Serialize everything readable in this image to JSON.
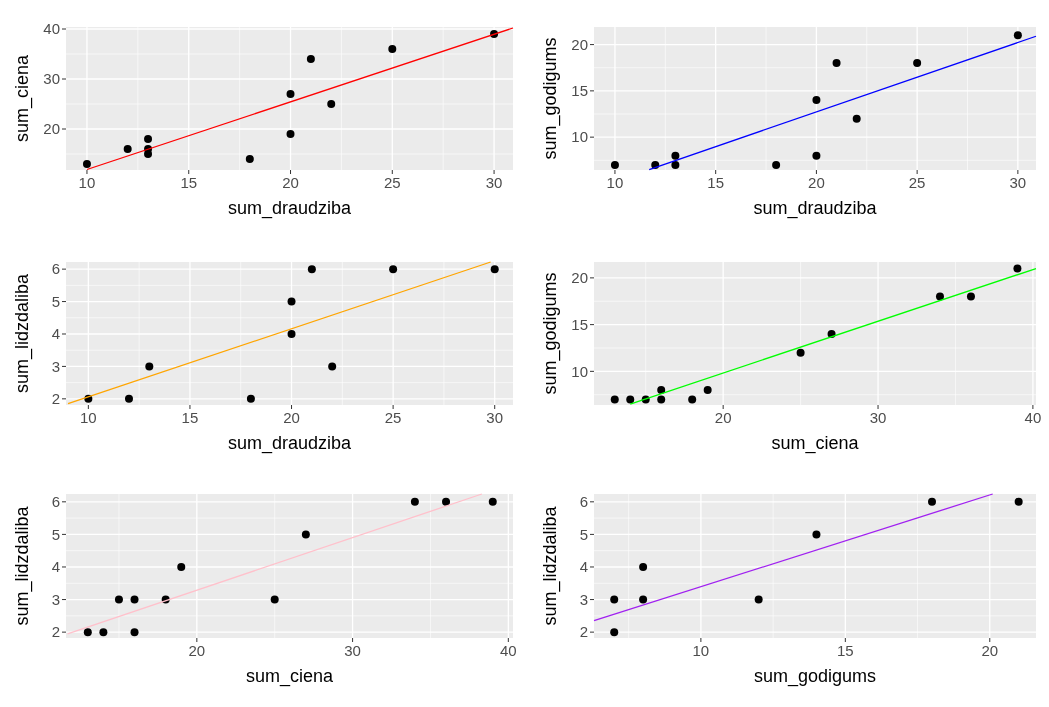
{
  "chart_data": [
    {
      "type": "scatter",
      "xlabel": "sum_draudziba",
      "ylabel": "sum_ciena",
      "xlim": [
        8.97,
        30.93
      ],
      "ylim": [
        11.8,
        40.4
      ],
      "xticks": [
        10,
        15,
        20,
        25,
        30
      ],
      "yticks": [
        20,
        30,
        40
      ],
      "grid": true,
      "series": [
        {
          "type": "scatter",
          "color": "#000000",
          "marker": "circle",
          "x": [
            10,
            12,
            13,
            13,
            13,
            18,
            20,
            20,
            21,
            22,
            25,
            30
          ],
          "values": [
            13,
            16,
            18,
            16,
            15,
            14,
            27,
            19,
            34,
            25,
            36,
            39
          ]
        },
        {
          "type": "line",
          "color": "#ff0000",
          "x": [
            10,
            30.93
          ],
          "values": [
            11.9,
            40.2
          ]
        }
      ]
    },
    {
      "type": "scatter",
      "xlabel": "sum_draudziba",
      "ylabel": "sum_godigums",
      "xlim": [
        8.96,
        30.9
      ],
      "ylim": [
        6.45,
        21.9
      ],
      "xticks": [
        10,
        15,
        20,
        25,
        30
      ],
      "yticks": [
        10,
        15,
        20
      ],
      "grid": true,
      "series": [
        {
          "type": "scatter",
          "color": "#000000",
          "marker": "circle",
          "x": [
            10,
            12,
            13,
            13,
            18,
            20,
            20,
            21,
            22,
            25,
            30
          ],
          "values": [
            7,
            7,
            8,
            7,
            7,
            14,
            8,
            18,
            12,
            18,
            21
          ]
        },
        {
          "type": "line",
          "color": "#0000ff",
          "x": [
            11.7,
            30.9
          ],
          "values": [
            6.5,
            20.9
          ]
        }
      ]
    },
    {
      "type": "scatter",
      "xlabel": "sum_draudziba",
      "ylabel": "sum_lidzdaliba",
      "xlim": [
        8.9,
        30.9
      ],
      "ylim": [
        1.81,
        6.22
      ],
      "xticks": [
        10,
        15,
        20,
        25,
        30
      ],
      "yticks": [
        2,
        3,
        4,
        5,
        6
      ],
      "grid": true,
      "series": [
        {
          "type": "scatter",
          "color": "#000000",
          "marker": "circle",
          "x": [
            10,
            12,
            13,
            18,
            20,
            20,
            21,
            22,
            25,
            30
          ],
          "values": [
            2,
            2,
            3,
            2,
            5,
            4,
            6,
            3,
            6,
            6
          ]
        },
        {
          "type": "line",
          "color": "#ffa500",
          "x": [
            9,
            29.8
          ],
          "values": [
            1.85,
            6.22
          ]
        }
      ]
    },
    {
      "type": "scatter",
      "xlabel": "sum_ciena",
      "ylabel": "sum_godigums",
      "xlim": [
        11.66,
        40.2
      ],
      "ylim": [
        6.4,
        21.7
      ],
      "xticks": [
        20,
        30,
        40
      ],
      "yticks": [
        10,
        15,
        20
      ],
      "grid": true,
      "series": [
        {
          "type": "scatter",
          "color": "#000000",
          "marker": "circle",
          "x": [
            13,
            14,
            15,
            16,
            16,
            18,
            19,
            25,
            27,
            34,
            36,
            39
          ],
          "values": [
            7,
            7,
            7,
            8,
            7,
            7,
            8,
            12,
            14,
            18,
            18,
            21
          ]
        },
        {
          "type": "line",
          "color": "#00ff00",
          "x": [
            14,
            40.2
          ],
          "values": [
            6.5,
            21
          ]
        }
      ]
    },
    {
      "type": "scatter",
      "xlabel": "sum_ciena",
      "ylabel": "sum_lidzdaliba",
      "xlim": [
        11.6,
        40.3
      ],
      "ylim": [
        1.82,
        6.24
      ],
      "xticks": [
        20,
        30,
        40
      ],
      "yticks": [
        2,
        3,
        4,
        5,
        6
      ],
      "grid": true,
      "series": [
        {
          "type": "scatter",
          "color": "#000000",
          "marker": "circle",
          "x": [
            13,
            14,
            15,
            16,
            16,
            18,
            19,
            25,
            27,
            34,
            36,
            39
          ],
          "values": [
            2,
            2,
            3,
            3,
            2,
            3,
            4,
            3,
            5,
            6,
            6,
            6
          ]
        },
        {
          "type": "line",
          "color": "#ffc0cb",
          "x": [
            11.7,
            38.3
          ],
          "values": [
            1.95,
            6.24
          ]
        }
      ]
    },
    {
      "type": "scatter",
      "xlabel": "sum_godigums",
      "ylabel": "sum_lidzdaliba",
      "xlim": [
        6.3,
        21.6
      ],
      "ylim": [
        1.82,
        6.24
      ],
      "xticks": [
        10,
        15,
        20
      ],
      "yticks": [
        2,
        3,
        4,
        5,
        6
      ],
      "grid": true,
      "series": [
        {
          "type": "scatter",
          "color": "#000000",
          "marker": "circle",
          "x": [
            7,
            7,
            8,
            8,
            12,
            14,
            18,
            21
          ],
          "values": [
            3,
            2,
            4,
            3,
            3,
            5,
            6,
            6
          ]
        },
        {
          "type": "line",
          "color": "#a020f0",
          "x": [
            6.3,
            20.1
          ],
          "values": [
            2.35,
            6.24
          ]
        }
      ]
    }
  ]
}
